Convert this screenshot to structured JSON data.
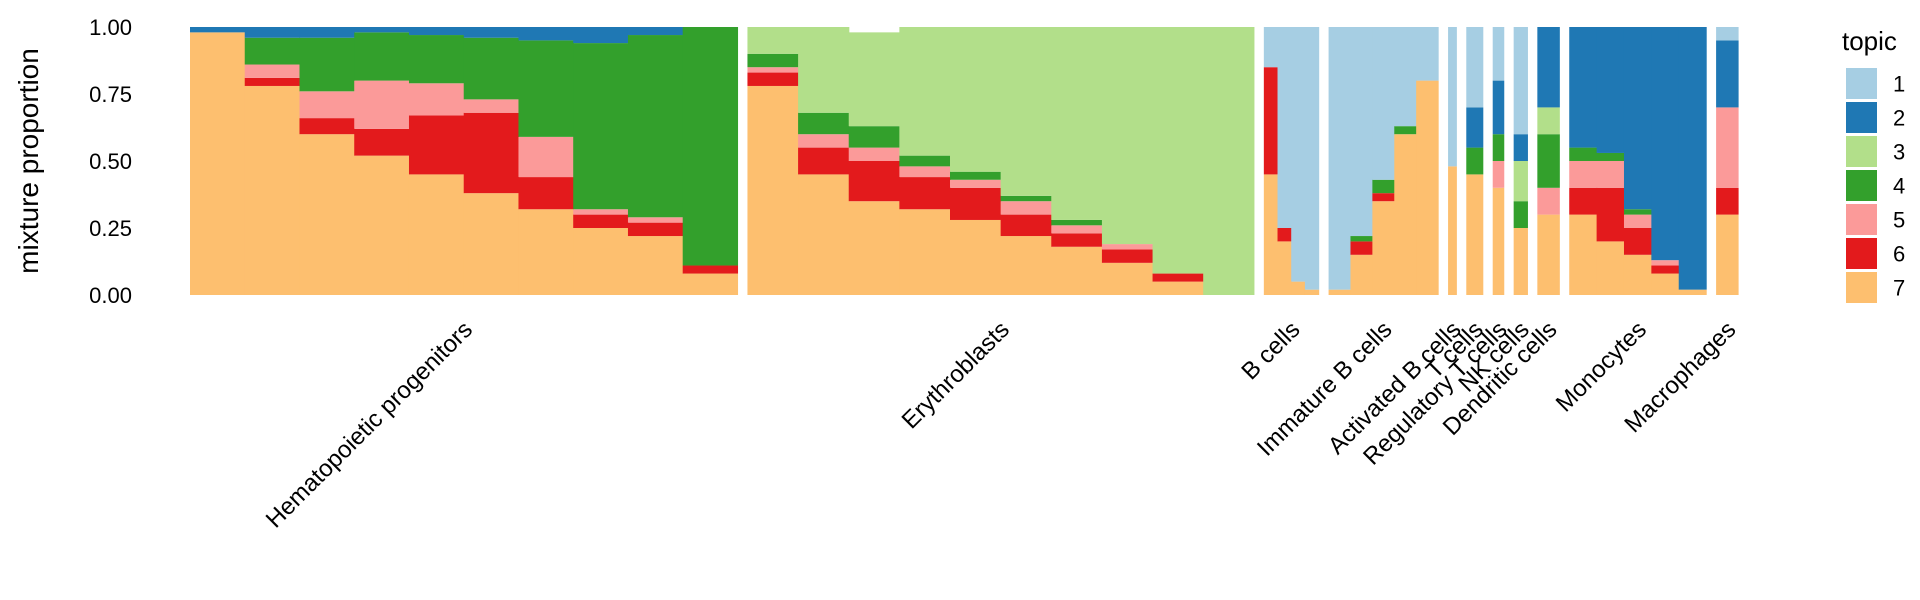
{
  "chart_data": {
    "type": "bar",
    "subtype": "structure-plot (stacked proportions per cell, grouped by cell type)",
    "ylabel": "mixture proportion",
    "ylim": [
      0,
      1
    ],
    "y_ticks": [
      "0.00",
      "0.25",
      "0.50",
      "0.75",
      "1.00"
    ],
    "grid": false,
    "legend": {
      "title": "topic",
      "placement": "right",
      "entries": [
        {
          "label": "1",
          "color": "#a6cee3"
        },
        {
          "label": "2",
          "color": "#1f78b4"
        },
        {
          "label": "3",
          "color": "#b2df8a"
        },
        {
          "label": "4",
          "color": "#33a02c"
        },
        {
          "label": "5",
          "color": "#fb9a99"
        },
        {
          "label": "6",
          "color": "#e31a1c"
        },
        {
          "label": "7",
          "color": "#fdbf6f"
        }
      ]
    },
    "stack_order_bottom_to_top": [
      "7",
      "6",
      "5",
      "4",
      "3",
      "2",
      "1"
    ],
    "groups": [
      {
        "name": "Hematopoietic progenitors",
        "cells": 400,
        "series": {
          "7": [
            0.98,
            0.78,
            0.6,
            0.52,
            0.45,
            0.38,
            0.32,
            0.25,
            0.22,
            0.08
          ],
          "6": [
            0.0,
            0.03,
            0.06,
            0.1,
            0.22,
            0.3,
            0.12,
            0.05,
            0.05,
            0.03
          ],
          "5": [
            0.0,
            0.05,
            0.1,
            0.18,
            0.12,
            0.05,
            0.15,
            0.02,
            0.02,
            0.0
          ],
          "4": [
            0.0,
            0.1,
            0.2,
            0.18,
            0.18,
            0.23,
            0.36,
            0.62,
            0.68,
            0.89
          ],
          "2": [
            0.02,
            0.04,
            0.04,
            0.02,
            0.03,
            0.04,
            0.05,
            0.06,
            0.03,
            0.0
          ]
        }
      },
      {
        "name": "Erythroblasts",
        "cells": 370,
        "series": {
          "7": [
            0.78,
            0.45,
            0.35,
            0.32,
            0.28,
            0.22,
            0.18,
            0.12,
            0.05,
            0.0
          ],
          "6": [
            0.05,
            0.1,
            0.15,
            0.12,
            0.12,
            0.08,
            0.05,
            0.05,
            0.03,
            0.0
          ],
          "5": [
            0.02,
            0.05,
            0.05,
            0.04,
            0.03,
            0.05,
            0.03,
            0.02,
            0.0,
            0.0
          ],
          "4": [
            0.05,
            0.08,
            0.08,
            0.04,
            0.03,
            0.02,
            0.02,
            0.0,
            0.0,
            0.0
          ],
          "3": [
            0.1,
            0.32,
            0.35,
            0.48,
            0.54,
            0.63,
            0.72,
            0.81,
            0.92,
            1.0
          ]
        }
      },
      {
        "name": "B cells",
        "cells": 40,
        "series": {
          "7": [
            0.45,
            0.2,
            0.05,
            0.02
          ],
          "6": [
            0.4,
            0.05,
            0.0,
            0.0
          ],
          "1": [
            0.15,
            0.75,
            0.95,
            0.98
          ]
        }
      },
      {
        "name": "Immature B cells",
        "cells": 80,
        "series": {
          "7": [
            0.02,
            0.15,
            0.35,
            0.6,
            0.8
          ],
          "6": [
            0.0,
            0.05,
            0.03,
            0.0,
            0.0
          ],
          "4": [
            0.0,
            0.02,
            0.05,
            0.03,
            0.0
          ],
          "1": [
            0.98,
            0.78,
            0.57,
            0.37,
            0.2
          ]
        }
      },
      {
        "name": "Activated B cells",
        "cells": 6,
        "series": {
          "7": [
            0.48
          ],
          "1": [
            0.52
          ]
        }
      },
      {
        "name": "T cells",
        "cells": 12,
        "series": {
          "7": [
            0.45
          ],
          "4": [
            0.1
          ],
          "2": [
            0.15
          ],
          "1": [
            0.3
          ]
        }
      },
      {
        "name": "Regulatory T cells",
        "cells": 8,
        "series": {
          "7": [
            0.4
          ],
          "5": [
            0.1
          ],
          "4": [
            0.1
          ],
          "2": [
            0.2
          ],
          "1": [
            0.2
          ]
        }
      },
      {
        "name": "NK cells",
        "cells": 10,
        "series": {
          "7": [
            0.25
          ],
          "3": [
            0.15
          ],
          "4": [
            0.1
          ],
          "2": [
            0.1
          ],
          "1": [
            0.4
          ]
        }
      },
      {
        "name": "Dendritic cells",
        "cells": 16,
        "series": {
          "7": [
            0.3
          ],
          "5": [
            0.1
          ],
          "4": [
            0.2
          ],
          "3": [
            0.1
          ],
          "2": [
            0.3
          ]
        }
      },
      {
        "name": "Monocytes",
        "cells": 100,
        "series": {
          "7": [
            0.3,
            0.2,
            0.15,
            0.08,
            0.02
          ],
          "6": [
            0.1,
            0.2,
            0.1,
            0.03,
            0.0
          ],
          "5": [
            0.1,
            0.1,
            0.05,
            0.02,
            0.0
          ],
          "4": [
            0.05,
            0.03,
            0.02,
            0.0,
            0.0
          ],
          "2": [
            0.45,
            0.47,
            0.68,
            0.87,
            0.98
          ]
        }
      },
      {
        "name": "Macrophages",
        "cells": 16,
        "series": {
          "7": [
            0.3
          ],
          "6": [
            0.1
          ],
          "5": [
            0.3
          ],
          "2": [
            0.25
          ],
          "1": [
            0.05
          ]
        }
      }
    ]
  }
}
